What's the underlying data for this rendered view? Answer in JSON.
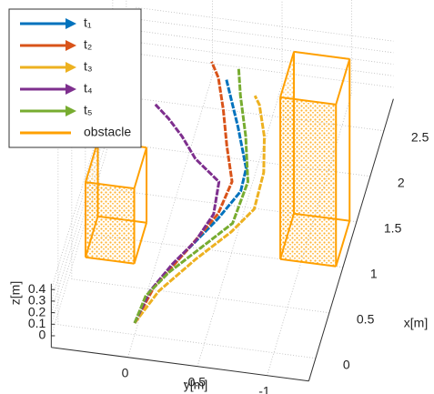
{
  "chart_data": {
    "type": "line3d",
    "xlabel": "x[m]",
    "ylabel": "y[m]",
    "zlabel": "z[m]",
    "xlim": [
      -0.25,
      2.85
    ],
    "ylim": [
      -1.3,
      0.55
    ],
    "zlim": [
      -0.1,
      0.45
    ],
    "xticks": [
      0,
      0.5,
      1,
      1.5,
      2,
      2.5
    ],
    "yticks": [
      0,
      -0.5,
      -1
    ],
    "zticks": [
      0,
      0.1,
      0.2,
      0.3,
      0.4
    ],
    "grid": true,
    "legend": "upper left",
    "series": [
      {
        "name": "t₁",
        "color": "#0072bd",
        "x": [
          0,
          0.36,
          0.79,
          1.22,
          1.54,
          1.79,
          2.21,
          2.7
        ],
        "y": [
          0,
          -0.04,
          -0.19,
          -0.36,
          -0.46,
          -0.45,
          -0.31,
          -0.13
        ]
      },
      {
        "name": "t₂",
        "color": "#d95319",
        "x": [
          0,
          0.41,
          0.84,
          1.27,
          1.63,
          2.0,
          2.38,
          2.71,
          2.87
        ],
        "y": [
          0,
          -0.06,
          -0.21,
          -0.35,
          -0.38,
          -0.27,
          -0.17,
          -0.07,
          0.01
        ]
      },
      {
        "name": "t₃",
        "color": "#edb120",
        "x": [
          0,
          0.37,
          0.76,
          1.1,
          1.37,
          1.77,
          2.15,
          2.48,
          2.57
        ],
        "y": [
          0,
          -0.1,
          -0.29,
          -0.48,
          -0.59,
          -0.58,
          -0.51,
          -0.41,
          -0.36
        ]
      },
      {
        "name": "t₄",
        "color": "#7e2f8e",
        "x": [
          0,
          0.36,
          0.68,
          0.95,
          1.26,
          1.61,
          1.82,
          2.04,
          2.21,
          2.34
        ],
        "y": [
          0,
          -0.04,
          -0.14,
          -0.25,
          -0.32,
          -0.29,
          -0.08,
          0.06,
          0.19,
          0.31
        ]
      },
      {
        "name": "t₅",
        "color": "#77ac30",
        "x": [
          0,
          0.3,
          0.58,
          0.92,
          1.19,
          1.65,
          2.13,
          2.55,
          2.84
        ],
        "y": [
          0,
          -0.02,
          -0.13,
          -0.32,
          -0.47,
          -0.49,
          -0.38,
          -0.26,
          -0.19
        ]
      }
    ],
    "obstacle_name": "obstacle",
    "obstacle_color": "#ffa000",
    "obstacles": [
      {
        "x": [
          0.75,
          1.2
        ],
        "y": [
          0.15,
          0.5
        ],
        "z": [
          -0.1,
          0.55
        ]
      },
      {
        "x": [
          1.0,
          1.5
        ],
        "y": [
          -1.25,
          -0.85
        ],
        "z": [
          -0.1,
          1.3
        ]
      }
    ]
  }
}
